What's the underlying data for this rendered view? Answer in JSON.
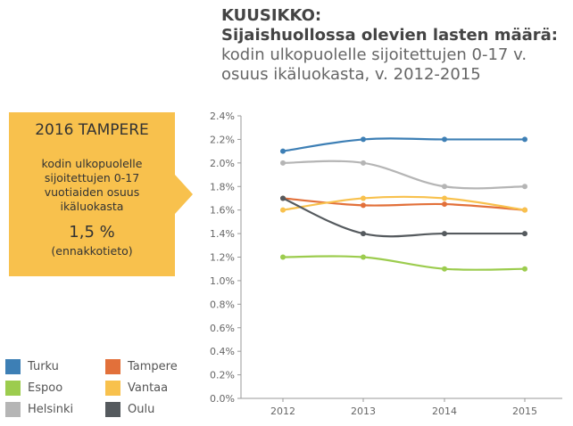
{
  "title": {
    "line1": "KUUSIKKO:",
    "line2": "Sijaishuollossa olevien lasten määrä:",
    "line3": "kodin ulkopuolelle sijoitettujen 0-17 v.",
    "line4": "osuus ikäluokasta, v. 2012-2015"
  },
  "callout": {
    "title": "2016 TAMPERE",
    "body": [
      "kodin ulkopuolelle",
      "sijoitettujen 0-17",
      "vuotiaiden osuus",
      "ikäluokasta"
    ],
    "value": "1,5 %",
    "note": "(ennakkotieto)",
    "color": "#f8c14d"
  },
  "chart_data": {
    "type": "line",
    "categories": [
      "2012",
      "2013",
      "2014",
      "2015"
    ],
    "ylim": [
      0,
      2.4
    ],
    "yticks": [
      0.0,
      0.2,
      0.4,
      0.6,
      0.8,
      1.0,
      1.2,
      1.4,
      1.6,
      1.8,
      2.0,
      2.2,
      2.4
    ],
    "ytick_labels": [
      "0.0%",
      "0.2%",
      "0.4%",
      "0.6%",
      "0.8%",
      "1.0%",
      "1.2%",
      "1.4%",
      "1.6%",
      "1.8%",
      "2.0%",
      "2.2%",
      "2.4%"
    ],
    "grid": false,
    "series": [
      {
        "name": "Turku",
        "color": "#3d7fb5",
        "values": [
          2.1,
          2.2,
          2.2,
          2.2
        ]
      },
      {
        "name": "Espoo",
        "color": "#9ccc4e",
        "values": [
          1.2,
          1.2,
          1.1,
          1.1
        ]
      },
      {
        "name": "Helsinki",
        "color": "#b5b5b5",
        "values": [
          2.0,
          2.0,
          1.8,
          1.8
        ]
      },
      {
        "name": "Tampere",
        "color": "#e2703a",
        "values": [
          1.7,
          1.64,
          1.65,
          1.6
        ]
      },
      {
        "name": "Vantaa",
        "color": "#f8c14d",
        "values": [
          1.6,
          1.7,
          1.7,
          1.6
        ]
      },
      {
        "name": "Oulu",
        "color": "#555a5e",
        "values": [
          1.7,
          1.4,
          1.4,
          1.4
        ]
      }
    ]
  }
}
